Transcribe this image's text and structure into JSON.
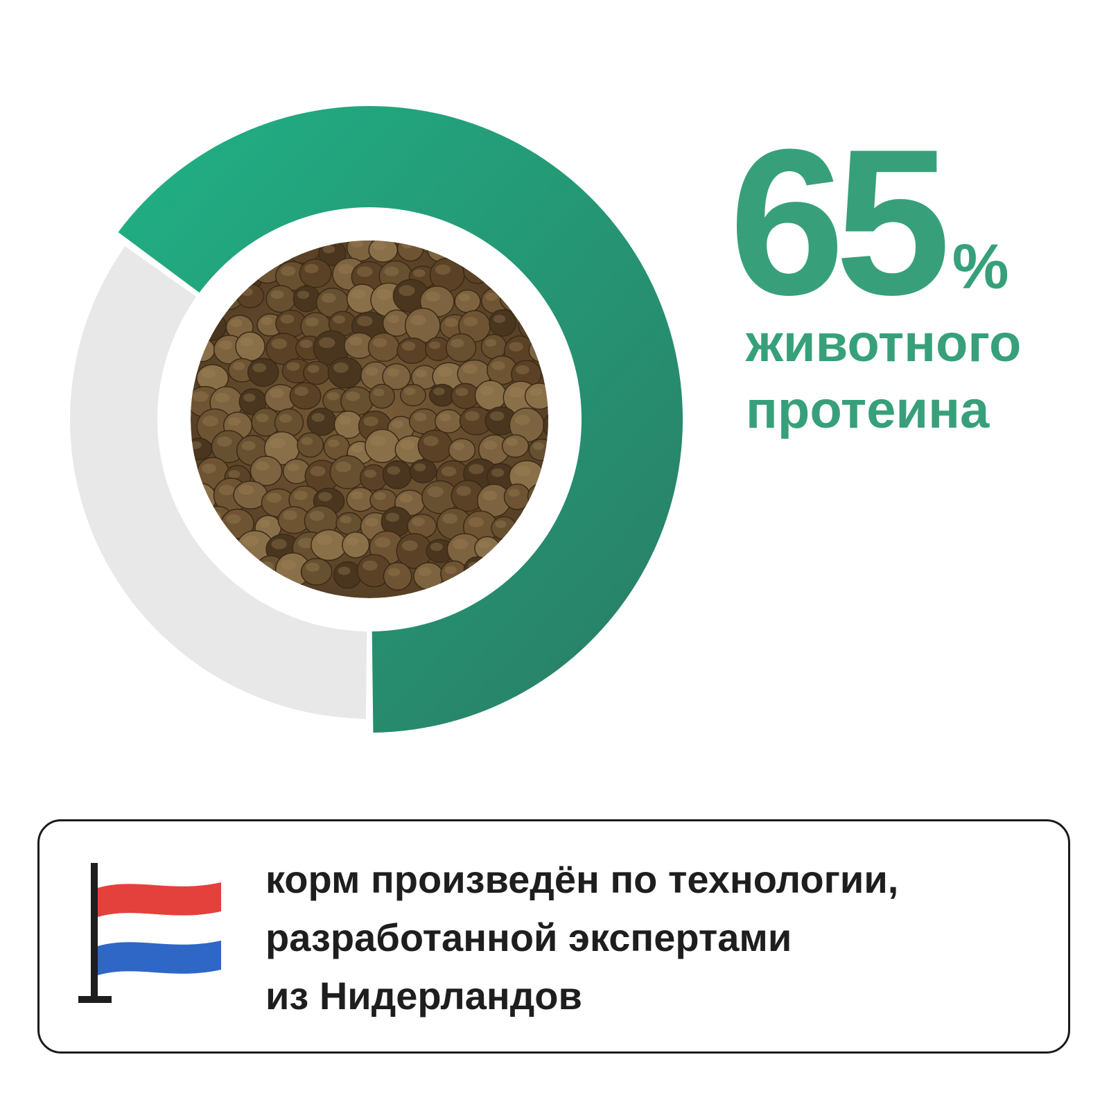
{
  "chart_data": {
    "type": "pie",
    "variant": "donut",
    "slices": [
      {
        "value": 65,
        "color": "#2f9a72"
      },
      {
        "value": 35,
        "color": "#e8e8e8"
      }
    ],
    "highlighted_slice": 0
  },
  "stat": {
    "value": "65",
    "unit": "%",
    "caption_line1": "животного",
    "caption_line2": "протеина"
  },
  "note": {
    "line1": "корм произведён по технологии,",
    "line2": "разработанной экспертами",
    "line3": "из Нидерландов"
  },
  "colors": {
    "accent": "#37a07a",
    "ring_gradient_start": "#20b185",
    "ring_gradient_end": "#2a7c64",
    "ring_rest": "#e8e8e8",
    "kibble": "#6f5433",
    "flag_red": "#e4413d",
    "flag_blue": "#2f67c7",
    "text_dark": "#1e1e1e"
  },
  "icons": {
    "flag": "netherlands-flag-icon"
  }
}
